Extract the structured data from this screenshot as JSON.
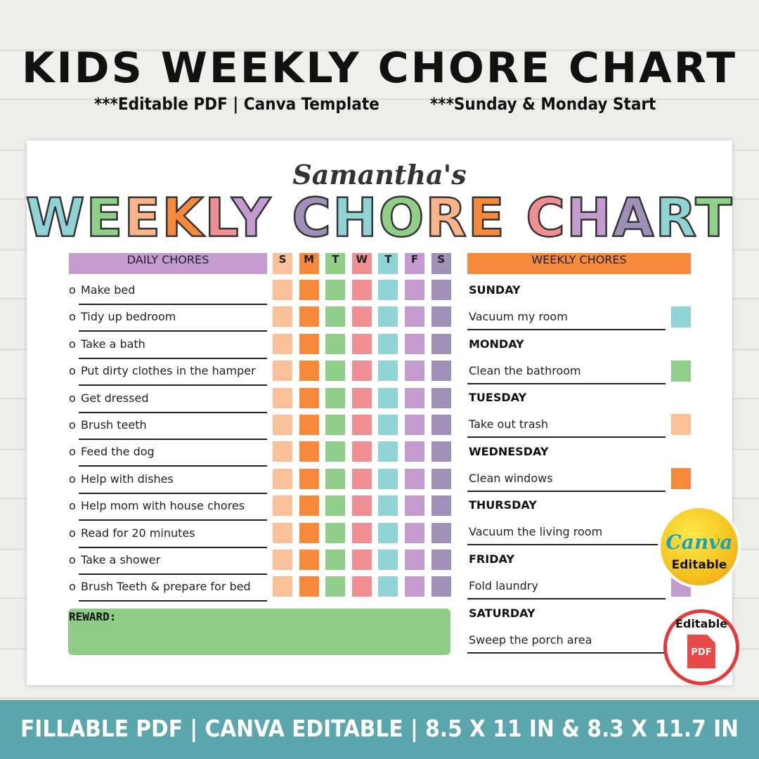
{
  "header": {
    "title": "KIDS WEEKLY CHORE CHART",
    "subtitle_left": "***Editable PDF  |  Canva Template",
    "subtitle_right": "***Sunday & Monday Start"
  },
  "sheet": {
    "name": "Samantha's",
    "title": "WEEKLY CHORE CHART",
    "daily": {
      "header": "DAILY CHORES",
      "days": [
        "S",
        "M",
        "T",
        "W",
        "T",
        "F",
        "S"
      ],
      "bullet": "o",
      "chores": [
        "Make bed",
        "Tidy up bedroom",
        "Take a bath",
        "Put dirty clothes in the hamper",
        "Get dressed",
        "Brush teeth",
        "Feed the dog",
        "Help with dishes",
        "Help mom with house chores",
        "Read for 20 minutes",
        "Take a shower",
        "Brush Teeth & prepare for bed"
      ]
    },
    "weekly": {
      "header": "WEEKLY CHORES",
      "items": [
        {
          "day": "SUNDAY",
          "chore": "Vacuum my room"
        },
        {
          "day": "MONDAY",
          "chore": "Clean the bathroom"
        },
        {
          "day": "TUESDAY",
          "chore": "Take out trash"
        },
        {
          "day": "WEDNESDAY",
          "chore": "Clean windows"
        },
        {
          "day": "THURSDAY",
          "chore": "Vacuum the living room"
        },
        {
          "day": "FRIDAY",
          "chore": "Fold laundry"
        },
        {
          "day": "SATURDAY",
          "chore": "Sweep the porch area"
        }
      ]
    },
    "reward": "REWARD:"
  },
  "badges": {
    "canva": {
      "brand": "Canva",
      "label": "Editable"
    },
    "pdf": {
      "label": "Editable",
      "icon": "PDF"
    }
  },
  "footer": "FILLABLE PDF  |  CANVA EDITABLE  |  8.5 X 11 IN & 8.3 X 11.7 IN"
}
